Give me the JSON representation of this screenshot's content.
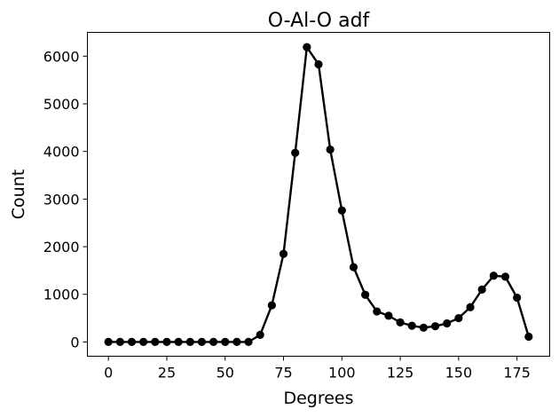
{
  "chart_data": {
    "type": "line",
    "title": "O-Al-O adf",
    "xlabel": "Degrees",
    "ylabel": "Count",
    "xlim": [
      -9,
      189
    ],
    "ylim": [
      -300,
      6500
    ],
    "xticks": [
      0,
      25,
      50,
      75,
      100,
      125,
      150,
      175
    ],
    "yticks": [
      0,
      1000,
      2000,
      3000,
      4000,
      5000,
      6000
    ],
    "grid": false,
    "series": [
      {
        "color": "#000000",
        "marker": "circle",
        "x": [
          0,
          5,
          10,
          15,
          20,
          25,
          30,
          35,
          40,
          45,
          50,
          55,
          60,
          65,
          70,
          75,
          80,
          85,
          90,
          95,
          100,
          105,
          110,
          115,
          120,
          125,
          130,
          135,
          140,
          145,
          150,
          155,
          160,
          165,
          170,
          175,
          180
        ],
        "y": [
          0,
          0,
          0,
          0,
          0,
          0,
          0,
          0,
          0,
          0,
          0,
          0,
          0,
          150,
          770,
          1850,
          3970,
          6190,
          5830,
          4040,
          2760,
          1570,
          990,
          640,
          550,
          410,
          340,
          300,
          330,
          390,
          500,
          730,
          1100,
          1390,
          1370,
          930,
          110
        ]
      }
    ]
  }
}
